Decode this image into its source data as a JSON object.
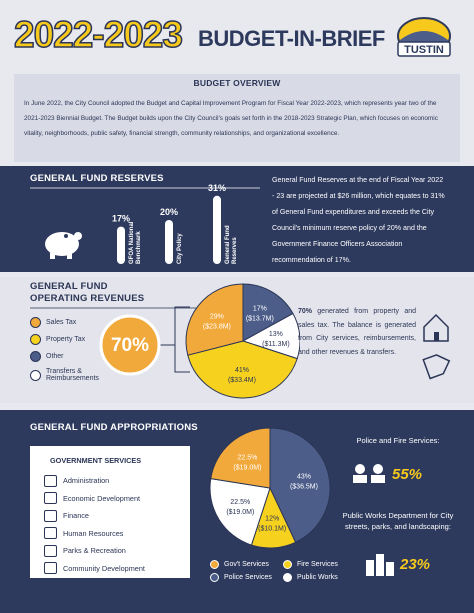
{
  "header": {
    "year": "2022-2023",
    "title": "BUDGET-IN-BRIEF",
    "logo": "TUSTIN"
  },
  "overview": {
    "heading": "BUDGET OVERVIEW",
    "text": "In June 2022, the City Council adopted the Budget and Capital Improvement Program for Fiscal Year 2022-2023, which represents year two of the 2021-2023 Biennial Budget. The Budget builds upon the City Council's goals set forth in the 2018-2023 Strategic Plan, which focuses on economic vitality, neighborhoods, public safety, financial strength, community relationships, and organizational excellence."
  },
  "reserves": {
    "heading": "GENERAL FUND RESERVES",
    "bars": [
      {
        "label_lines": [
          "GFOA National",
          "Benchmark"
        ],
        "value": 17,
        "value_label": "17%"
      },
      {
        "label_lines": [
          "City Policy"
        ],
        "value": 20,
        "value_label": "20%"
      },
      {
        "label_lines": [
          "General Fund",
          "Reserves"
        ],
        "value": 31,
        "value_label": "31%"
      }
    ],
    "color": "#ffffff",
    "text": "General Fund Reserves at the end of Fiscal Year 2022 - 23 are projected at $26 million, which equates to 31% of General Fund expenditures and exceeds the City Council's minimum reserve policy of 20% and the Government Finance Officers Association recommendation of 17%."
  },
  "revenues": {
    "heading": [
      "GENERAL FUND",
      "OPERATING REVENUES"
    ],
    "legend": [
      {
        "name": "Sales Tax",
        "color": "#f2a93b"
      },
      {
        "name": "Property Tax",
        "color": "#f6d21f"
      },
      {
        "name": "Other",
        "color": "#4c5d8a"
      },
      {
        "name": "Transfers & Reimbursements",
        "color": "#ffffff"
      }
    ],
    "highlight": "70%",
    "pie": [
      {
        "value": 17,
        "value_label": "17%",
        "amount_label": "($13.7M)",
        "color": "#4c5d8a",
        "label_color": "#ffffff"
      },
      {
        "value": 13,
        "value_label": "13%",
        "amount_label": "($11.3M)",
        "color": "#ffffff",
        "label_color": "#2b3556"
      },
      {
        "value": 41,
        "value_label": "41%",
        "amount_label": "($33.4M)",
        "color": "#f6d21f",
        "label_color": "#2b3556"
      },
      {
        "value": 29,
        "value_label": "29%",
        "amount_label": "($23.8M)",
        "color": "#f2a93b",
        "label_color": "#ffffff"
      }
    ],
    "text_bold": "70%",
    "text": " generated from property and sales tax. The balance is generated from City services, reimbursements, and other revenues & transfers."
  },
  "appropriations": {
    "heading": "GENERAL FUND APPROPRIATIONS",
    "services_heading": "GOVERNMENT SERVICES",
    "services": [
      "Administration",
      "Economic Development",
      "Finance",
      "Human Resources",
      "Parks & Recreation",
      "Community Development"
    ],
    "pie": [
      {
        "value": 43,
        "value_label": "43%",
        "amount_label": "($36.5M)",
        "color": "#4c5d8a",
        "label_color": "#ffffff"
      },
      {
        "value": 12,
        "value_label": "12%",
        "amount_label": "($10.1M)",
        "color": "#f6d21f",
        "label_color": "#2b3556"
      },
      {
        "value": 22.5,
        "value_label": "22.5%",
        "amount_label": "($19.0M)",
        "color": "#ffffff",
        "label_color": "#2b3556"
      },
      {
        "value": 22.5,
        "value_label": "22.5%",
        "amount_label": "($19.0M)",
        "color": "#f2a93b",
        "label_color": "#ffffff"
      }
    ],
    "legend": [
      {
        "name": "Gov't Services",
        "color": "#f2a93b"
      },
      {
        "name": "Fire Services",
        "color": "#f6d21f"
      },
      {
        "name": "Police Services",
        "color": "#4c5d8a"
      },
      {
        "name": "Public Works",
        "color": "#ffffff"
      }
    ],
    "police_fire_text": "Police and Fire Services:",
    "police_fire_value": "55%",
    "public_works_text": "Public Works Department for City streets, parks, and landscaping:",
    "public_works_value": "23%"
  }
}
